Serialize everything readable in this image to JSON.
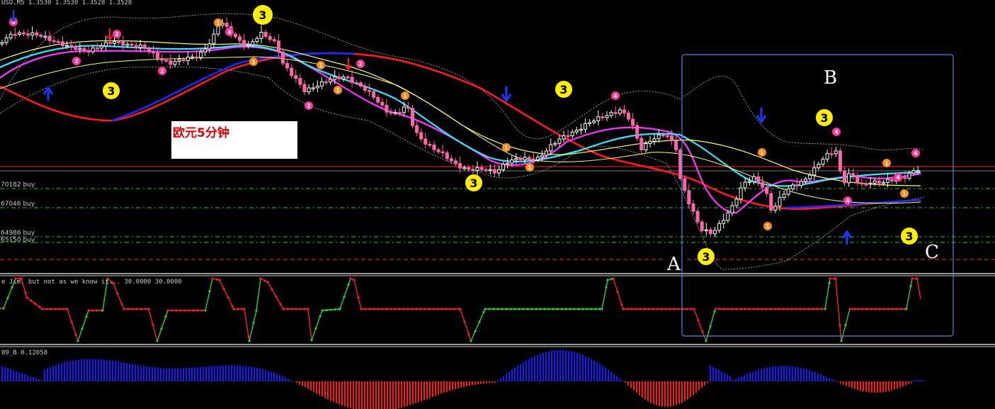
{
  "header": {
    "symbol_info": "USD,M5  1.3530 1.3530 1.3528 1.3528"
  },
  "title_box": {
    "text": "欧元5分钟"
  },
  "price_levels": [
    {
      "label": "70182 buy",
      "color": "#22cc22"
    },
    {
      "label": "67046 buy",
      "color": "#22cc22"
    },
    {
      "label": "64986 buy",
      "color": "#22cc22"
    },
    {
      "label": "65150 buy",
      "color": "#22cc22"
    }
  ],
  "annotations": {
    "letter_a": "A",
    "letter_b": "B",
    "letter_c": "C"
  },
  "indicator1": {
    "label": "e Jim, but not as we know it...  30.0000 30.0000"
  },
  "indicator2": {
    "label": "09_B 0.12058"
  },
  "colors": {
    "up_candle": "#ffffff",
    "down_candle": "#ff66aa",
    "ma_red": "#ff1a1a",
    "ma_blue": "#1a2bff",
    "ma_magenta": "#ff33ff",
    "ma_cyan": "#33e6ff",
    "ma_yellow": "#ffff66",
    "osc_up": "#2cd12c",
    "osc_down": "#ff2020",
    "hist_pos": "#1a1aff",
    "hist_neg": "#ff1a1a",
    "marker_yellow": "#ffee00",
    "marker_orange": "#ff8a1a",
    "marker_pink": "#ff3399",
    "arrow_blue": "#1a3aff",
    "arrow_red": "#ff1a1a",
    "selection_box": "#4a8adf"
  },
  "chart_data": [
    {
      "type": "candlestick",
      "title": "",
      "series": [
        {
          "name": "",
          "values": []
        }
      ],
      "markers": [
        {
          "text": "3",
          "style": "yellow"
        },
        {
          "text": "3",
          "style": "yellow"
        },
        {
          "text": "3",
          "style": "yellow"
        },
        {
          "text": "3",
          "style": "yellow"
        },
        {
          "text": "3",
          "style": "yellow"
        },
        {
          "text": "3",
          "style": "yellow"
        },
        {
          "text": "3",
          "style": "yellow"
        },
        {
          "text": "1",
          "style": "orange"
        },
        {
          "text": "1",
          "style": "orange"
        },
        {
          "text": "1",
          "style": "orange"
        },
        {
          "text": "1",
          "style": "orange"
        },
        {
          "text": "1",
          "style": "orange"
        },
        {
          "text": "1",
          "style": "orange"
        },
        {
          "text": "1",
          "style": "orange"
        },
        {
          "text": "1",
          "style": "orange"
        },
        {
          "text": "1",
          "style": "orange"
        },
        {
          "text": "1",
          "style": "orange"
        },
        {
          "text": "1",
          "style": "orange"
        },
        {
          "text": "2",
          "style": "pink"
        },
        {
          "text": "2",
          "style": "pink"
        },
        {
          "text": "2",
          "style": "pink"
        },
        {
          "text": "2",
          "style": "pink"
        },
        {
          "text": "2",
          "style": "pink"
        },
        {
          "text": "4",
          "style": "pink"
        },
        {
          "text": "4",
          "style": "pink"
        },
        {
          "text": "4",
          "style": "pink"
        },
        {
          "text": "4",
          "style": "pink"
        },
        {
          "text": "4",
          "style": "pink"
        },
        {
          "text": "4",
          "style": "pink"
        },
        {
          "text": "4",
          "style": "pink"
        }
      ]
    },
    {
      "type": "line",
      "title": "e Jim, but not as we know it...  30.0000 30.0000",
      "series": [
        {
          "name": "",
          "values": []
        }
      ]
    },
    {
      "type": "bar",
      "title": "09_B 0.12058",
      "series": [
        {
          "name": "",
          "values": []
        }
      ]
    }
  ]
}
